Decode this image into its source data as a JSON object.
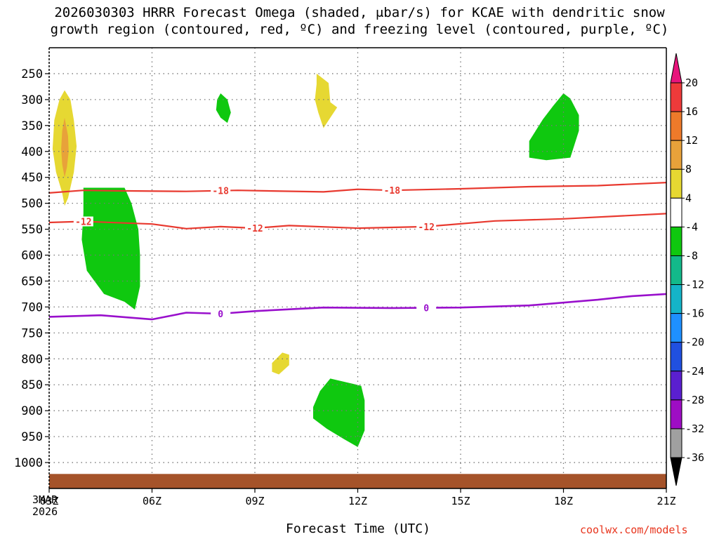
{
  "chart_data": {
    "type": "time-height cross section",
    "title_line1": "2026030303 HRRR Forecast Omega (shaded, μbar/s) for KCAE with dendritic snow",
    "title_line2": "growth region (contoured, red, ºC) and freezing level (contoured, purple, ºC)",
    "xlabel": "Forecast Time (UTC)",
    "ylabel": "",
    "date_label": [
      "3MAR",
      "2026"
    ],
    "credit": "coolwx.com/models",
    "x_range_hours": [
      0,
      18
    ],
    "x_ticks": [
      {
        "hour": 0,
        "label": "03Z"
      },
      {
        "hour": 3,
        "label": "06Z"
      },
      {
        "hour": 6,
        "label": "09Z"
      },
      {
        "hour": 9,
        "label": "12Z"
      },
      {
        "hour": 12,
        "label": "15Z"
      },
      {
        "hour": 15,
        "label": "18Z"
      },
      {
        "hour": 18,
        "label": "21Z"
      }
    ],
    "y_range_hpa": [
      1050,
      200
    ],
    "y_ticks": [
      250,
      300,
      350,
      400,
      450,
      500,
      550,
      600,
      650,
      700,
      750,
      800,
      850,
      900,
      950,
      1000
    ],
    "colorbar": {
      "labels": [
        "20",
        "16",
        "12",
        "8",
        "4",
        "-4",
        "-8",
        "-12",
        "-16",
        "-20",
        "-24",
        "-28",
        "-32",
        "-36"
      ],
      "bins": [
        {
          "min": 16,
          "max": 20,
          "color": "#ee3a3a"
        },
        {
          "min": 12,
          "max": 16,
          "color": "#ee7a2a"
        },
        {
          "min": 8,
          "max": 12,
          "color": "#e8a23a"
        },
        {
          "min": 4,
          "max": 8,
          "color": "#e6d832"
        },
        {
          "min": -4,
          "max": 4,
          "color": "#ffffff"
        },
        {
          "min": -8,
          "max": -4,
          "color": "#0fc80f"
        },
        {
          "min": -12,
          "max": -8,
          "color": "#13b98a"
        },
        {
          "min": -16,
          "max": -12,
          "color": "#14b4c8"
        },
        {
          "min": -20,
          "max": -16,
          "color": "#1e90ff"
        },
        {
          "min": -24,
          "max": -20,
          "color": "#2050e0"
        },
        {
          "min": -28,
          "max": -24,
          "color": "#5a1fd0"
        },
        {
          "min": -32,
          "max": -28,
          "color": "#9e0dc4"
        },
        {
          "min": -36,
          "max": -32,
          "color": "#a0a0a0"
        }
      ],
      "upper_extend_color": "#e8147c",
      "lower_extend_color": "#000000"
    },
    "omega_regions": [
      {
        "id": "yellow-0330z",
        "value_bin": "4 to 8",
        "color": "#e6d832",
        "points": [
          [
            0.45,
            282
          ],
          [
            0.62,
            300
          ],
          [
            0.72,
            340
          ],
          [
            0.8,
            390
          ],
          [
            0.72,
            440
          ],
          [
            0.55,
            490
          ],
          [
            0.45,
            505
          ],
          [
            0.38,
            480
          ],
          [
            0.2,
            440
          ],
          [
            0.1,
            395
          ],
          [
            0.15,
            340
          ],
          [
            0.3,
            300
          ]
        ]
      },
      {
        "id": "orange-0400z",
        "value_bin": "8 to 12",
        "color": "#e8a23a",
        "points": [
          [
            0.45,
            335
          ],
          [
            0.55,
            370
          ],
          [
            0.57,
            400
          ],
          [
            0.52,
            430
          ],
          [
            0.45,
            450
          ],
          [
            0.38,
            425
          ],
          [
            0.35,
            395
          ],
          [
            0.38,
            360
          ]
        ]
      },
      {
        "id": "green-0530z",
        "value_bin": "-8 to -4",
        "color": "#0fc80f",
        "points": [
          [
            1,
            470
          ],
          [
            2.2,
            470
          ],
          [
            2.4,
            500
          ],
          [
            2.6,
            550
          ],
          [
            2.65,
            600
          ],
          [
            2.65,
            660
          ],
          [
            2.5,
            705
          ],
          [
            2.2,
            690
          ],
          [
            1.6,
            675
          ],
          [
            1.1,
            630
          ],
          [
            0.95,
            570
          ],
          [
            1.0,
            520
          ]
        ]
      },
      {
        "id": "green-0800z",
        "value_bin": "-8 to -4",
        "color": "#0fc80f",
        "points": [
          [
            5.0,
            288
          ],
          [
            5.2,
            300
          ],
          [
            5.3,
            325
          ],
          [
            5.2,
            345
          ],
          [
            5.0,
            335
          ],
          [
            4.87,
            320
          ],
          [
            4.9,
            300
          ]
        ]
      },
      {
        "id": "yellow-1100z",
        "value_bin": "4 to 8",
        "color": "#e6d832",
        "points": [
          [
            7.8,
            250
          ],
          [
            8.15,
            268
          ],
          [
            8.2,
            305
          ],
          [
            8.4,
            315
          ],
          [
            8.2,
            335
          ],
          [
            8.0,
            355
          ],
          [
            7.85,
            325
          ],
          [
            7.75,
            300
          ],
          [
            7.8,
            270
          ]
        ]
      },
      {
        "id": "yellow-0945z",
        "value_bin": "4 to 8",
        "color": "#e6d832",
        "points": [
          [
            6.5,
            808
          ],
          [
            6.8,
            788
          ],
          [
            7.0,
            792
          ],
          [
            7.0,
            812
          ],
          [
            6.7,
            830
          ],
          [
            6.5,
            825
          ]
        ]
      },
      {
        "id": "green-1130z",
        "value_bin": "-8 to -4",
        "color": "#0fc80f",
        "points": [
          [
            7.9,
            862
          ],
          [
            8.2,
            838
          ],
          [
            9.1,
            852
          ],
          [
            9.2,
            880
          ],
          [
            9.2,
            938
          ],
          [
            9.0,
            970
          ],
          [
            8.6,
            955
          ],
          [
            8.1,
            935
          ],
          [
            7.7,
            915
          ],
          [
            7.7,
            893
          ]
        ]
      },
      {
        "id": "green-1745z",
        "value_bin": "-8 to -4",
        "color": "#0fc80f",
        "points": [
          [
            14.0,
            380
          ],
          [
            14.4,
            338
          ],
          [
            14.7,
            312
          ],
          [
            15.0,
            288
          ],
          [
            15.2,
            298
          ],
          [
            15.45,
            330
          ],
          [
            15.45,
            360
          ],
          [
            15.2,
            412
          ],
          [
            14.5,
            417
          ],
          [
            14.0,
            412
          ]
        ]
      }
    ],
    "dgz_contours": [
      {
        "level": "-18",
        "color": "#e8392f",
        "points": [
          [
            0,
            480
          ],
          [
            1,
            475
          ],
          [
            2,
            476
          ],
          [
            4,
            477
          ],
          [
            5.5,
            475
          ],
          [
            8,
            478
          ],
          [
            9,
            473
          ],
          [
            10,
            475
          ],
          [
            12,
            472
          ],
          [
            14,
            468
          ],
          [
            16,
            466
          ],
          [
            18,
            460
          ]
        ],
        "labels": [
          {
            "hour": 5.0,
            "text": "-18"
          },
          {
            "hour": 10.0,
            "text": "-18"
          }
        ]
      },
      {
        "level": "-12",
        "color": "#e8392f",
        "points": [
          [
            0,
            537
          ],
          [
            1,
            535
          ],
          [
            3,
            540
          ],
          [
            4,
            549
          ],
          [
            5,
            545
          ],
          [
            6,
            548
          ],
          [
            7,
            543
          ],
          [
            9,
            548
          ],
          [
            11,
            545
          ],
          [
            13,
            534
          ],
          [
            15,
            530
          ],
          [
            18,
            520
          ]
        ],
        "labels": [
          {
            "hour": 1.0,
            "text": "-12"
          },
          {
            "hour": 6.0,
            "text": "-12"
          },
          {
            "hour": 11.0,
            "text": "-12"
          }
        ]
      }
    ],
    "freezing_level": {
      "level": "0",
      "color": "#9910cc",
      "points": [
        [
          0,
          719
        ],
        [
          1.5,
          716
        ],
        [
          3,
          724
        ],
        [
          4,
          711
        ],
        [
          5,
          713
        ],
        [
          6,
          708
        ],
        [
          8,
          701
        ],
        [
          10,
          702
        ],
        [
          12,
          701
        ],
        [
          14,
          697
        ],
        [
          16,
          686
        ],
        [
          17,
          679
        ],
        [
          18,
          675
        ]
      ],
      "labels": [
        {
          "hour": 5.0,
          "text": "0"
        },
        {
          "hour": 11.0,
          "text": "0"
        }
      ]
    },
    "terrain": {
      "color": "#a5532a",
      "top_hpa": 1022
    }
  }
}
